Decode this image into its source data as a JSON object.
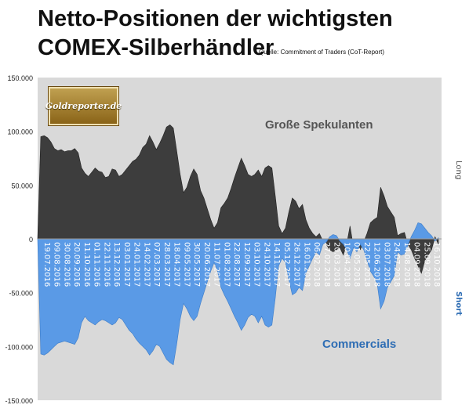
{
  "header": {
    "title_line1": "Netto-Positionen der wichtigsten",
    "title_line2": "COMEX-Silberhändler",
    "source": "Quelle: Commitment of Traders (CoT-Report)"
  },
  "logo": {
    "text": "Goldreporter.de"
  },
  "colors": {
    "long_fill": "#3d3d3d",
    "short_fill": "#5a9ae6",
    "plot_bg": "#d9d9d9",
    "series1_label": "#555555",
    "series2_label": "#2e6db4",
    "short_axis_label": "#2e6db4"
  },
  "chart_data": {
    "type": "area",
    "ylim": [
      -150000,
      150000
    ],
    "y_ticks": [
      "150.000",
      "100.000",
      "50.000",
      "0",
      "-50.000",
      "-100.000",
      "-150.000"
    ],
    "y_tick_values": [
      150000,
      100000,
      50000,
      0,
      -50000,
      -100000,
      -150000
    ],
    "x_tick_labels": [
      "19.07.2016",
      "09.08.2016",
      "30.08.2016",
      "20.09.2016",
      "11.10.2016",
      "01.11.2016",
      "22.11.2016",
      "13.12.2016",
      "03.01.2017",
      "24.01.2017",
      "14.02.2017",
      "07.03.2017",
      "28.03.2017",
      "18.04.2017",
      "09.05.2017",
      "30.05.2017",
      "20.06.2017",
      "11.07.2017",
      "01.08.2017",
      "22.08.2017",
      "12.09.2017",
      "03.10.2017",
      "24.10.2017",
      "14.11.2017",
      "05.12.2017",
      "26.12.2017",
      "16.01.2018",
      "06.02.2018",
      "27.02.2018",
      "20.03.2018",
      "10.04.2018",
      "01.05.2018",
      "22.05.2018",
      "12.06.2018",
      "03.07.2018",
      "24.07.2018",
      "14.08.2018",
      "04.09.2018",
      "25.09.2018",
      "16.10.2018"
    ],
    "right_axis_top": "Long",
    "right_axis_bottom": "Short",
    "series": [
      {
        "name": "Große Spekulanten",
        "values": [
          95000,
          96000,
          94000,
          90000,
          84000,
          82000,
          83000,
          81000,
          82000,
          82000,
          84000,
          80000,
          66000,
          61000,
          58000,
          62000,
          66000,
          63000,
          62000,
          57000,
          58000,
          65000,
          64000,
          58000,
          60000,
          64000,
          68000,
          72000,
          74000,
          78000,
          85000,
          88000,
          96000,
          90000,
          83000,
          89000,
          96000,
          104000,
          106000,
          103000,
          82000,
          60000,
          43000,
          48000,
          58000,
          65000,
          60000,
          45000,
          38000,
          28000,
          18000,
          10000,
          15000,
          29000,
          33000,
          38000,
          47000,
          57000,
          66000,
          75000,
          68000,
          60000,
          58000,
          60000,
          64000,
          58000,
          66000,
          68000,
          66000,
          40000,
          12000,
          5000,
          10000,
          25000,
          38000,
          35000,
          28000,
          32000,
          18000,
          10000,
          5000,
          2000,
          5000,
          -2000,
          -5000,
          -10000,
          -12000,
          -10000,
          -8000,
          -15000,
          -5000,
          12000,
          -8000,
          -5000,
          -10000,
          -3000,
          5000,
          15000,
          18000,
          20000,
          48000,
          40000,
          30000,
          25000,
          20000,
          3000,
          5000,
          6000,
          -5000,
          -10000,
          -18000,
          -25000,
          -32000,
          -20000,
          -15000,
          -10000,
          2000,
          -5000
        ]
      },
      {
        "name": "Commercials",
        "values": [
          -107000,
          -108000,
          -106000,
          -103000,
          -100000,
          -97000,
          -96000,
          -95000,
          -96000,
          -97000,
          -98000,
          -92000,
          -78000,
          -72000,
          -76000,
          -78000,
          -80000,
          -77000,
          -75000,
          -76000,
          -78000,
          -80000,
          -78000,
          -73000,
          -75000,
          -80000,
          -85000,
          -88000,
          -93000,
          -97000,
          -100000,
          -103000,
          -108000,
          -104000,
          -98000,
          -100000,
          -106000,
          -112000,
          -115000,
          -117000,
          -98000,
          -75000,
          -60000,
          -65000,
          -72000,
          -76000,
          -72000,
          -60000,
          -50000,
          -40000,
          -30000,
          -22000,
          -30000,
          -45000,
          -52000,
          -58000,
          -65000,
          -72000,
          -78000,
          -85000,
          -80000,
          -73000,
          -70000,
          -72000,
          -78000,
          -72000,
          -80000,
          -82000,
          -80000,
          -55000,
          -25000,
          -18000,
          -22000,
          -38000,
          -52000,
          -50000,
          -45000,
          -48000,
          -32000,
          -25000,
          -18000,
          -12000,
          -15000,
          -5000,
          -3000,
          2000,
          4000,
          3000,
          -2000,
          -5000,
          -10000,
          -18000,
          -8000,
          -12000,
          -5000,
          -10000,
          -20000,
          -30000,
          -35000,
          -42000,
          -65000,
          -58000,
          -45000,
          -40000,
          -34000,
          -12000,
          -15000,
          -14000,
          -6000,
          2000,
          8000,
          15000,
          14000,
          10000,
          6000,
          3000,
          -2000,
          1000
        ]
      }
    ]
  }
}
